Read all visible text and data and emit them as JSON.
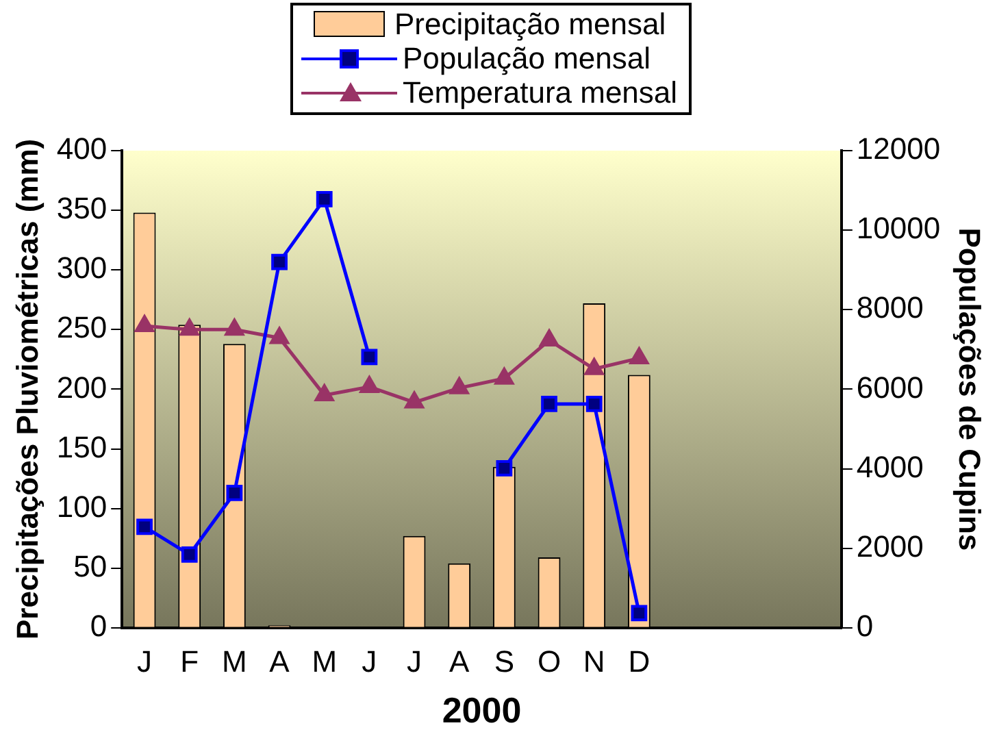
{
  "chart_data": {
    "type": "bar",
    "xlabel": "2000",
    "ylabel": "Precipitações Pluviométricas (mm)",
    "y2label": "Populações de Cupins",
    "categories": [
      "J",
      "F",
      "M",
      "A",
      "M",
      "J",
      "J",
      "A",
      "S",
      "O",
      "N",
      "D",
      null,
      null,
      null,
      null
    ],
    "series": [
      {
        "name": "Precipitação mensal",
        "color": "#ffcc99",
        "values": [
          348,
          254,
          238,
          2,
          0,
          0,
          77,
          54,
          135,
          59,
          272,
          212,
          null,
          null,
          null,
          null
        ]
      },
      {
        "name": "População mensal",
        "type": "line",
        "axis": "y2",
        "marker": "square",
        "color": "#0000ff",
        "values": [
          2540,
          1840,
          3390,
          9200,
          10780,
          6810,
          null,
          null,
          4010,
          5630,
          5630,
          370,
          null,
          null,
          null,
          null
        ]
      },
      {
        "name": "Temperatura mensal",
        "type": "line",
        "marker": "triangle",
        "color": "#993366",
        "values": [
          253,
          250,
          250,
          243,
          195,
          202,
          189,
          201,
          209,
          241,
          217,
          226,
          null,
          null,
          null,
          null
        ]
      }
    ],
    "ylim": [
      0,
      400
    ],
    "yticks": [
      0,
      50,
      100,
      150,
      200,
      250,
      300,
      350,
      400
    ],
    "y2lim": [
      0,
      12000
    ],
    "y2ticks": [
      0,
      2000,
      4000,
      6000,
      8000,
      10000,
      12000
    ],
    "grid": false,
    "legend": "top"
  }
}
